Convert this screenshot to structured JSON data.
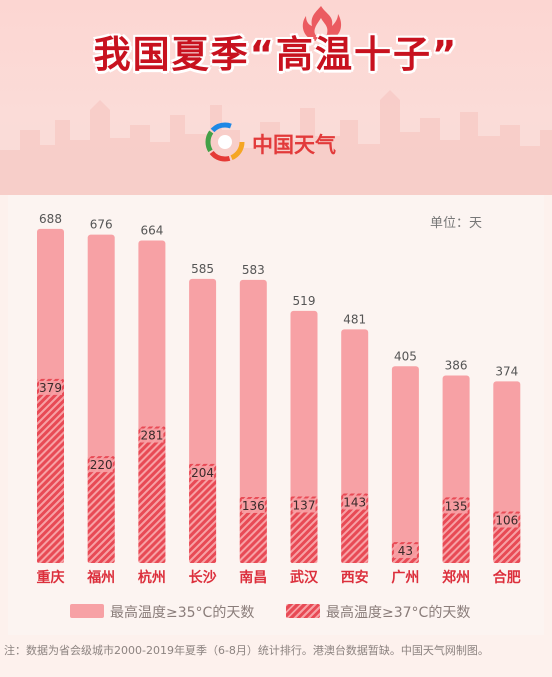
{
  "header": {
    "title": "我国夏季“高温十子”",
    "logo_text": "中国天气"
  },
  "unit_label": "单位：天",
  "chart_data": {
    "type": "bar",
    "categories": [
      "重庆",
      "福州",
      "杭州",
      "长沙",
      "南昌",
      "武汉",
      "西安",
      "广州",
      "郑州",
      "合肥"
    ],
    "series": [
      {
        "name": "最高温度≥35°C的天数",
        "values": [
          688,
          676,
          664,
          585,
          583,
          519,
          481,
          405,
          386,
          374
        ],
        "color": "#f7a1a5"
      },
      {
        "name": "最高温度≥37°C的天数",
        "values": [
          379,
          220,
          281,
          204,
          136,
          137,
          143,
          43,
          135,
          106
        ],
        "color": "#e84a55"
      }
    ],
    "ylim": [
      0,
      700
    ],
    "grid": false,
    "legend": "bottom"
  },
  "legend": {
    "a": "最高温度≥35°C的天数",
    "b": "最高温度≥37°C的天数"
  },
  "footnote": "注：数据为省会级城市2000-2019年夏季（6-8月）统计排行。港澳台数据暂缺。中国天气网制图。"
}
